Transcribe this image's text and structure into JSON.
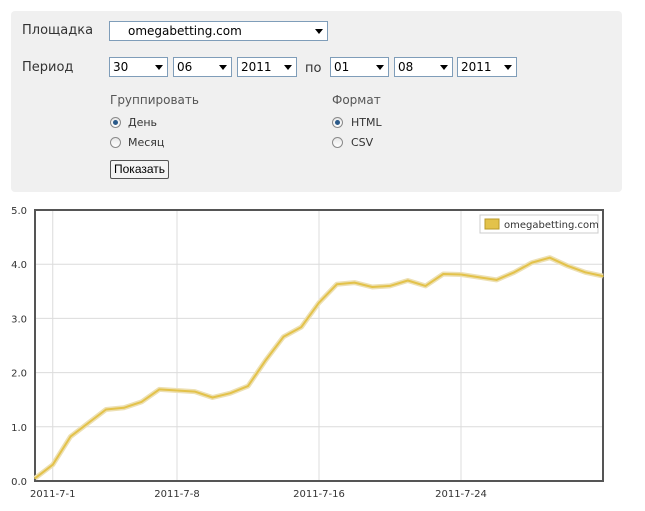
{
  "form": {
    "site_label": "Площадка",
    "site_value": "omegabetting.com",
    "period_label": "Период",
    "from_day": "30",
    "from_month": "06",
    "from_year": "2011",
    "to_label": "по",
    "to_day": "01",
    "to_month": "08",
    "to_year": "2011",
    "group_title": "Группировать",
    "group_options": [
      "День",
      "Месяц"
    ],
    "group_selected": "День",
    "format_title": "Формат",
    "format_options": [
      "HTML",
      "CSV"
    ],
    "format_selected": "HTML",
    "show_button": "Показать"
  },
  "chart_data": {
    "type": "line",
    "title": "",
    "xlabel": "",
    "ylabel": "",
    "ylim": [
      0,
      5
    ],
    "yticks": [
      "0.0",
      "1.0",
      "2.0",
      "3.0",
      "4.0",
      "5.0"
    ],
    "xticks": [
      {
        "label": "2011-7-1",
        "index": 1
      },
      {
        "label": "2011-7-8",
        "index": 8
      },
      {
        "label": "2011-7-16",
        "index": 16
      },
      {
        "label": "2011-7-24",
        "index": 24
      }
    ],
    "x": [
      "2011-6-30",
      "2011-7-1",
      "2011-7-2",
      "2011-7-3",
      "2011-7-4",
      "2011-7-5",
      "2011-7-6",
      "2011-7-7",
      "2011-7-8",
      "2011-7-9",
      "2011-7-10",
      "2011-7-11",
      "2011-7-12",
      "2011-7-13",
      "2011-7-14",
      "2011-7-15",
      "2011-7-16",
      "2011-7-17",
      "2011-7-18",
      "2011-7-19",
      "2011-7-20",
      "2011-7-21",
      "2011-7-22",
      "2011-7-23",
      "2011-7-24",
      "2011-7-25",
      "2011-7-26",
      "2011-7-27",
      "2011-7-28",
      "2011-7-29",
      "2011-7-30",
      "2011-7-31",
      "2011-8-1"
    ],
    "series": [
      {
        "name": "omegabetting.com",
        "color": "#e3c24a",
        "values": [
          0.05,
          0.3,
          0.82,
          1.07,
          1.32,
          1.35,
          1.46,
          1.69,
          1.67,
          1.65,
          1.54,
          1.62,
          1.75,
          2.23,
          2.66,
          2.84,
          3.29,
          3.63,
          3.66,
          3.58,
          3.6,
          3.7,
          3.6,
          3.82,
          3.81,
          3.76,
          3.71,
          3.85,
          4.03,
          4.12,
          3.97,
          3.85,
          3.78
        ]
      }
    ],
    "legend_position": "top-right",
    "grid": true
  }
}
